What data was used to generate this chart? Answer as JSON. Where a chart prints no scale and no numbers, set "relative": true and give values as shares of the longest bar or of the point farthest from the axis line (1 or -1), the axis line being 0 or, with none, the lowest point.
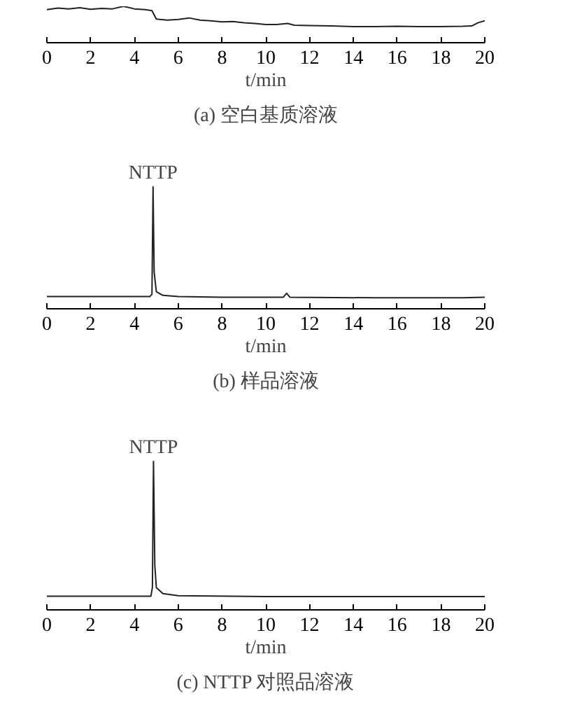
{
  "chart_data": [
    {
      "type": "line",
      "title": "(a) 空白基质溶液",
      "xlabel": "t/min",
      "relative": true,
      "xlim": [
        0,
        20
      ],
      "xticks": [
        0,
        2,
        4,
        6,
        8,
        10,
        12,
        14,
        16,
        18,
        20
      ],
      "grid": false,
      "marker": "none",
      "line_style": "solid",
      "series": [
        {
          "color": "#222222",
          "x": [
            0,
            0.5,
            1,
            1.5,
            2,
            2.5,
            3,
            3.5,
            4,
            4.5,
            4.8,
            5,
            5.5,
            6,
            6.5,
            7,
            7.5,
            8,
            8.5,
            9,
            9.5,
            10,
            10.5,
            11,
            11.3,
            12,
            13,
            14,
            15,
            16,
            17,
            18,
            19,
            19.4,
            19.7,
            20
          ],
          "values": [
            0.91,
            0.95,
            0.93,
            0.96,
            0.92,
            0.94,
            0.93,
            1.0,
            0.93,
            0.91,
            0.88,
            0.65,
            0.62,
            0.64,
            0.68,
            0.62,
            0.6,
            0.57,
            0.58,
            0.55,
            0.53,
            0.5,
            0.5,
            0.53,
            0.48,
            0.47,
            0.46,
            0.44,
            0.44,
            0.45,
            0.44,
            0.44,
            0.45,
            0.46,
            0.55,
            0.6
          ]
        }
      ]
    },
    {
      "type": "line",
      "title": "(b) 样品溶液",
      "xlabel": "t/min",
      "relative": true,
      "xlim": [
        0,
        20
      ],
      "xticks": [
        0,
        2,
        4,
        6,
        8,
        10,
        12,
        14,
        16,
        18,
        20
      ],
      "grid": false,
      "marker": "none",
      "line_style": "solid",
      "annotations": [
        {
          "text": "NTTP",
          "x": 4.85,
          "y": 1.0
        }
      ],
      "series": [
        {
          "color": "#222222",
          "x": [
            0,
            4.7,
            4.8,
            4.85,
            4.9,
            5.0,
            5.3,
            6,
            8,
            10.8,
            10.95,
            11.1,
            15,
            19,
            20
          ],
          "values": [
            0.1,
            0.1,
            0.12,
            1.0,
            0.3,
            0.14,
            0.11,
            0.1,
            0.095,
            0.095,
            0.127,
            0.095,
            0.09,
            0.09,
            0.095
          ]
        }
      ]
    },
    {
      "type": "line",
      "title": "(c) NTTP 对照品溶液",
      "xlabel": "t/min",
      "relative": true,
      "xlim": [
        0,
        20
      ],
      "xticks": [
        0,
        2,
        4,
        6,
        8,
        10,
        12,
        14,
        16,
        18,
        20
      ],
      "grid": false,
      "marker": "none",
      "line_style": "solid",
      "annotations": [
        {
          "text": "NTTP",
          "x": 4.87,
          "y": 1.0
        }
      ],
      "series": [
        {
          "color": "#222222",
          "x": [
            0,
            4.75,
            4.82,
            4.87,
            4.93,
            5.0,
            5.3,
            6,
            10,
            20
          ],
          "values": [
            0.092,
            0.092,
            0.15,
            1.0,
            0.3,
            0.15,
            0.11,
            0.095,
            0.09,
            0.09
          ]
        }
      ]
    }
  ]
}
